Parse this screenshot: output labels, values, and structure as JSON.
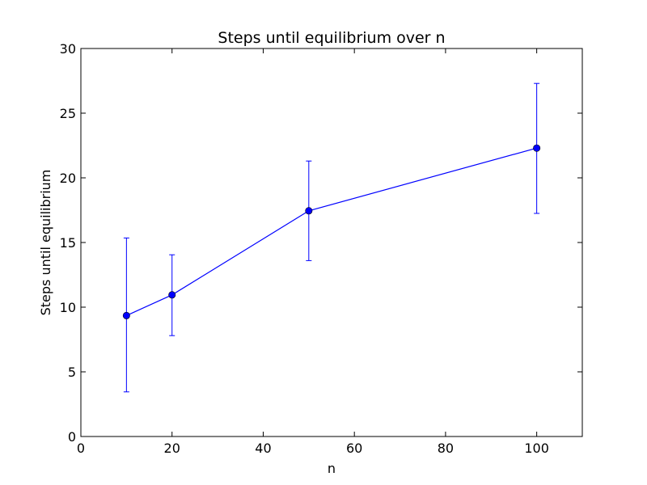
{
  "chart_data": {
    "type": "line",
    "title": "Steps until equilibrium over n",
    "xlabel": "n",
    "ylabel": "Steps until equilibrium",
    "xlim": [
      0,
      110
    ],
    "ylim": [
      0,
      30
    ],
    "x_ticks": [
      0,
      20,
      40,
      60,
      80,
      100
    ],
    "y_ticks": [
      0,
      5,
      10,
      15,
      20,
      25,
      30
    ],
    "grid": false,
    "series": [
      {
        "x": [
          10,
          20,
          50,
          100
        ],
        "y": [
          9.35,
          10.95,
          17.45,
          22.3
        ],
        "error_lower": [
          3.45,
          7.8,
          13.6,
          17.25
        ],
        "error_upper": [
          15.35,
          14.05,
          21.3,
          27.3
        ],
        "color": "#0000ff",
        "marker": "circle"
      }
    ]
  }
}
